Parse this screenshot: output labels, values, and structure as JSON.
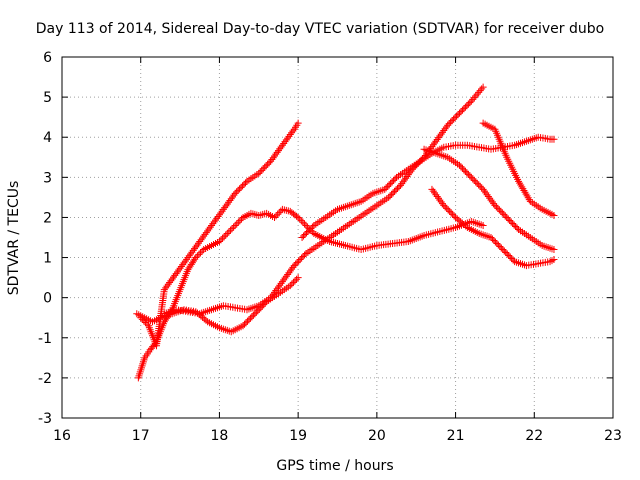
{
  "chart_data": {
    "type": "scatter",
    "title": "Day 113 of 2014, Sidereal Day-to-day VTEC variation (SDTVAR) for receiver dubo",
    "xlabel": "GPS time / hours",
    "ylabel": "SDTVAR / TECUs",
    "xlim": [
      16,
      23
    ],
    "ylim": [
      -3,
      6
    ],
    "xticks": [
      16,
      17,
      18,
      19,
      20,
      21,
      22,
      23
    ],
    "yticks": [
      -3,
      -2,
      -1,
      0,
      1,
      2,
      3,
      4,
      5,
      6
    ],
    "grid": true,
    "marker": "+",
    "color": "#ff0000",
    "series": [
      {
        "x": [
          17.0,
          17.1,
          17.2,
          17.3,
          17.45,
          17.6,
          17.75,
          17.9,
          18.05,
          18.2,
          18.35,
          18.5,
          18.65,
          18.8,
          18.95,
          19.0
        ],
        "y": [
          -0.5,
          -0.7,
          -1.2,
          0.2,
          0.6,
          1.0,
          1.4,
          1.8,
          2.2,
          2.6,
          2.9,
          3.1,
          3.4,
          3.8,
          4.2,
          4.35
        ]
      },
      {
        "x": [
          16.97,
          17.05,
          17.12,
          17.2,
          17.3,
          17.4,
          17.5,
          17.6,
          17.7,
          17.8,
          17.9,
          18.0,
          18.1,
          18.2,
          18.3,
          18.4,
          18.5,
          18.6,
          18.7,
          18.8,
          18.9,
          19.0,
          19.1,
          19.2,
          19.3,
          19.4,
          19.5,
          19.6,
          19.8,
          20.0,
          20.2,
          20.4,
          20.6,
          20.8,
          21.0,
          21.2,
          21.35
        ],
        "y": [
          -2.0,
          -1.5,
          -1.3,
          -1.1,
          -0.6,
          -0.3,
          0.2,
          0.7,
          1.0,
          1.2,
          1.3,
          1.4,
          1.6,
          1.8,
          2.0,
          2.1,
          2.05,
          2.1,
          2.0,
          2.2,
          2.15,
          2.0,
          1.8,
          1.6,
          1.5,
          1.4,
          1.35,
          1.3,
          1.2,
          1.3,
          1.35,
          1.4,
          1.55,
          1.65,
          1.75,
          1.9,
          1.8
        ]
      },
      {
        "x": [
          16.95,
          17.05,
          17.15,
          17.25,
          17.4,
          17.55,
          17.7,
          17.85,
          18.0,
          18.15,
          18.3,
          18.45,
          18.6,
          18.75,
          18.9,
          19.0
        ],
        "y": [
          -0.4,
          -0.5,
          -0.6,
          -0.5,
          -0.4,
          -0.3,
          -0.35,
          -0.6,
          -0.75,
          -0.85,
          -0.7,
          -0.4,
          -0.1,
          0.1,
          0.3,
          0.5
        ]
      },
      {
        "x": [
          17.3,
          17.45,
          17.6,
          17.75,
          17.9,
          18.05,
          18.2,
          18.35,
          18.5,
          18.65,
          18.8,
          18.95,
          19.1,
          19.25,
          19.4,
          19.55,
          19.7,
          19.85,
          20.0,
          20.15,
          20.3,
          20.45,
          20.6,
          20.75,
          20.9,
          21.05,
          21.2,
          21.35
        ],
        "y": [
          -0.4,
          -0.3,
          -0.35,
          -0.4,
          -0.3,
          -0.2,
          -0.25,
          -0.3,
          -0.2,
          0.0,
          0.4,
          0.8,
          1.1,
          1.3,
          1.5,
          1.7,
          1.9,
          2.1,
          2.3,
          2.5,
          2.8,
          3.2,
          3.5,
          3.9,
          4.3,
          4.6,
          4.9,
          5.25
        ]
      },
      {
        "x": [
          19.05,
          19.2,
          19.35,
          19.5,
          19.65,
          19.8,
          19.95,
          20.1,
          20.25,
          20.4,
          20.55,
          20.7,
          20.85,
          21.0,
          21.15,
          21.3,
          21.45,
          21.6,
          21.75,
          21.9,
          22.05,
          22.2,
          22.25
        ],
        "y": [
          1.5,
          1.8,
          2.0,
          2.2,
          2.3,
          2.4,
          2.6,
          2.7,
          3.0,
          3.2,
          3.4,
          3.6,
          3.75,
          3.8,
          3.8,
          3.75,
          3.7,
          3.75,
          3.8,
          3.9,
          4.0,
          3.95,
          3.95
        ]
      },
      {
        "x": [
          20.6,
          20.75,
          20.9,
          21.05,
          21.2,
          21.35,
          21.5,
          21.65,
          21.8,
          21.95,
          22.1,
          22.25
        ],
        "y": [
          3.7,
          3.6,
          3.5,
          3.3,
          3.0,
          2.7,
          2.3,
          2.0,
          1.7,
          1.5,
          1.3,
          1.2
        ]
      },
      {
        "x": [
          20.7,
          20.85,
          21.0,
          21.15,
          21.3,
          21.45,
          21.6,
          21.75,
          21.9,
          22.05,
          22.2,
          22.25
        ],
        "y": [
          2.7,
          2.3,
          2.0,
          1.75,
          1.6,
          1.5,
          1.2,
          0.9,
          0.8,
          0.85,
          0.9,
          0.95
        ]
      },
      {
        "x": [
          21.35,
          21.5,
          21.65,
          21.8,
          21.95,
          22.1,
          22.25
        ],
        "y": [
          4.35,
          4.2,
          3.5,
          2.9,
          2.4,
          2.2,
          2.05
        ]
      }
    ]
  }
}
